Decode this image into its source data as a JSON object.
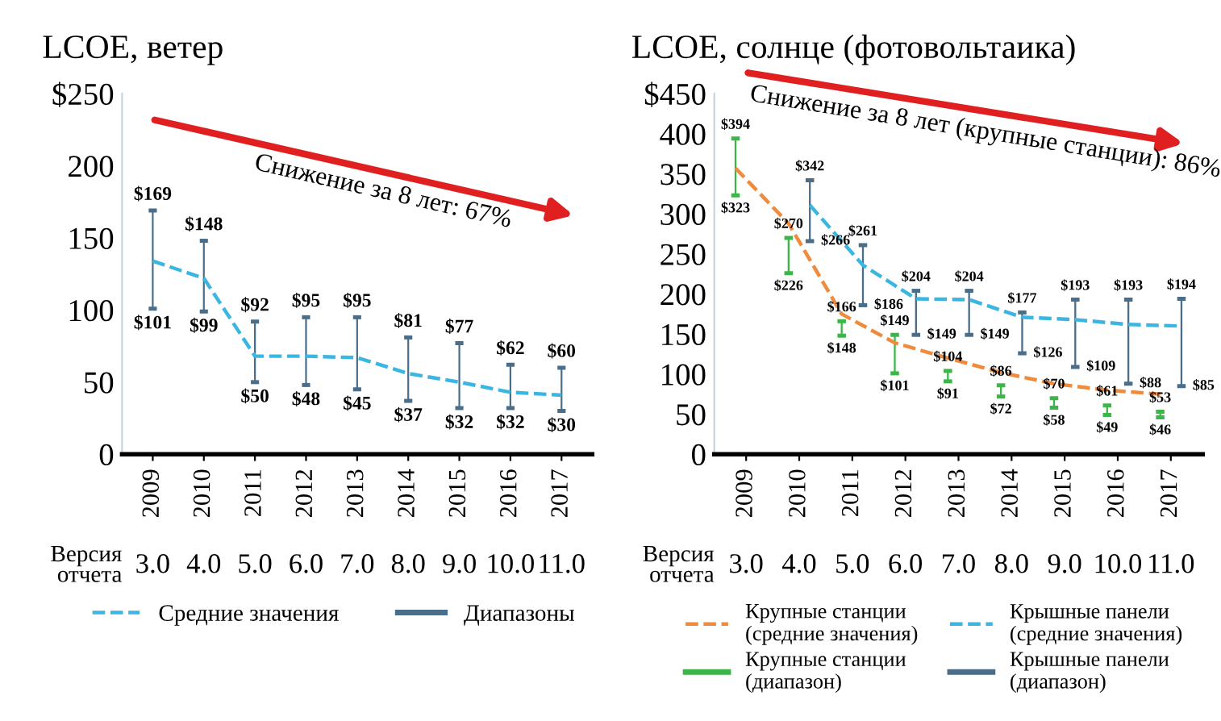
{
  "chart_data": [
    {
      "type": "bar",
      "title": "LCOE, ветер",
      "xlabel": "Версия\nотчета",
      "categories": [
        "2009",
        "2010",
        "2011",
        "2012",
        "2013",
        "2014",
        "2015",
        "2016",
        "2017"
      ],
      "series": [
        {
          "name": "Средние значения",
          "type": "line",
          "color": "#3bb6e0",
          "line_style": "dashed",
          "marker": "none",
          "values": [
            134,
            122,
            68,
            68,
            67,
            56,
            50,
            43,
            41
          ]
        },
        {
          "name": "Диапазоны",
          "color": "#4a6e8a",
          "base": [
            101,
            99,
            50,
            48,
            45,
            37,
            32,
            32,
            30
          ],
          "values": [
            68,
            49,
            42,
            47,
            50,
            44,
            45,
            30,
            30
          ]
        }
      ],
      "ylim": [
        0,
        250
      ],
      "yticks": [
        0,
        50,
        100,
        150,
        200,
        {
          "value": 250,
          "label": "$250"
        }
      ],
      "grid": false,
      "legend": "bottom",
      "annotations": [
        "Снижение за 8 лет: 67%",
        "3.0",
        "4.0",
        "5.0",
        "6.0",
        "7.0",
        "8.0",
        "9.0",
        "10.0",
        "11.0",
        {
          "text": "$169",
          "x": "2009",
          "y": 169
        },
        {
          "text": "$101",
          "x": "2009",
          "y": 101
        },
        {
          "text": "$148",
          "x": "2010",
          "y": 148
        },
        {
          "text": "$99",
          "x": "2010",
          "y": 99
        },
        {
          "text": "$92",
          "x": "2011",
          "y": 92
        },
        {
          "text": "$50",
          "x": "2011",
          "y": 50
        },
        {
          "text": "$95",
          "x": "2012",
          "y": 95
        },
        {
          "text": "$48",
          "x": "2012",
          "y": 48
        },
        {
          "text": "$95",
          "x": "2013",
          "y": 95
        },
        {
          "text": "$45",
          "x": "2013",
          "y": 45
        },
        {
          "text": "$81",
          "x": "2014",
          "y": 81
        },
        {
          "text": "$37",
          "x": "2014",
          "y": 37
        },
        {
          "text": "$77",
          "x": "2015",
          "y": 77
        },
        {
          "text": "$32",
          "x": "2015",
          "y": 32
        },
        {
          "text": "$62",
          "x": "2016",
          "y": 62
        },
        {
          "text": "$32",
          "x": "2016",
          "y": 32
        },
        {
          "text": "$60",
          "x": "2017",
          "y": 60
        },
        {
          "text": "$30",
          "x": "2017",
          "y": 30
        }
      ]
    },
    {
      "type": "bar",
      "title": "LCOE, солнце (фотовольтаика)",
      "xlabel": "Версия\nотчета",
      "categories": [
        "2009",
        "2010",
        "2011",
        "2012",
        "2013",
        "2014",
        "2015",
        "2016",
        "2017"
      ],
      "series": [
        {
          "name": "Крупные станции\n(средние значения)",
          "type": "line",
          "color": "#f08a3c",
          "line_style": "dashed",
          "marker": "none",
          "values": [
            357,
            288,
            175,
            139,
            120,
            102,
            88,
            80,
            75
          ]
        },
        {
          "name": "Крышные панели\n(средние значения)",
          "type": "line",
          "color": "#3bb6e0",
          "line_style": "dashed",
          "marker": "none",
          "values": [
            null,
            311,
            236,
            194,
            193,
            171,
            168,
            162,
            160
          ]
        },
        {
          "name": "Крупные станции\n(диапазон)",
          "color": "#3cb54a",
          "base": [
            323,
            226,
            148,
            101,
            91,
            72,
            58,
            49,
            46
          ],
          "values": [
            71,
            44,
            18,
            48,
            13,
            14,
            12,
            12,
            7
          ]
        },
        {
          "name": "Крышные панели\n(диапазон)",
          "color": "#4a6e8a",
          "base": [
            null,
            266,
            186,
            149,
            149,
            126,
            109,
            88,
            85
          ],
          "values": [
            null,
            76,
            75,
            55,
            55,
            51,
            84,
            105,
            109
          ]
        }
      ],
      "ylim": [
        0,
        450
      ],
      "yticks": [
        0,
        50,
        100,
        150,
        200,
        250,
        300,
        350,
        400,
        {
          "value": 450,
          "label": "$450"
        }
      ],
      "grid": false,
      "legend": "bottom",
      "annotations": [
        "Снижение за 8 лет (крупные станции): 86%",
        "3.0",
        "4.0",
        "5.0",
        "6.0",
        "7.0",
        "8.0",
        "9.0",
        "10.0",
        "11.0",
        "$394",
        "$323",
        "$270",
        "$226",
        "$166",
        "$148",
        "$149",
        "$101",
        "$104",
        "$91",
        "$86",
        "$72",
        "$70",
        "$58",
        "$61",
        "$49",
        "$53",
        "$46",
        "$342",
        "$266",
        "$261",
        "$186",
        "$204",
        "$149",
        "$204",
        "$149",
        "$177",
        "$126",
        "$193",
        "$109",
        "$193",
        "$88",
        "$194",
        "$85"
      ]
    }
  ]
}
